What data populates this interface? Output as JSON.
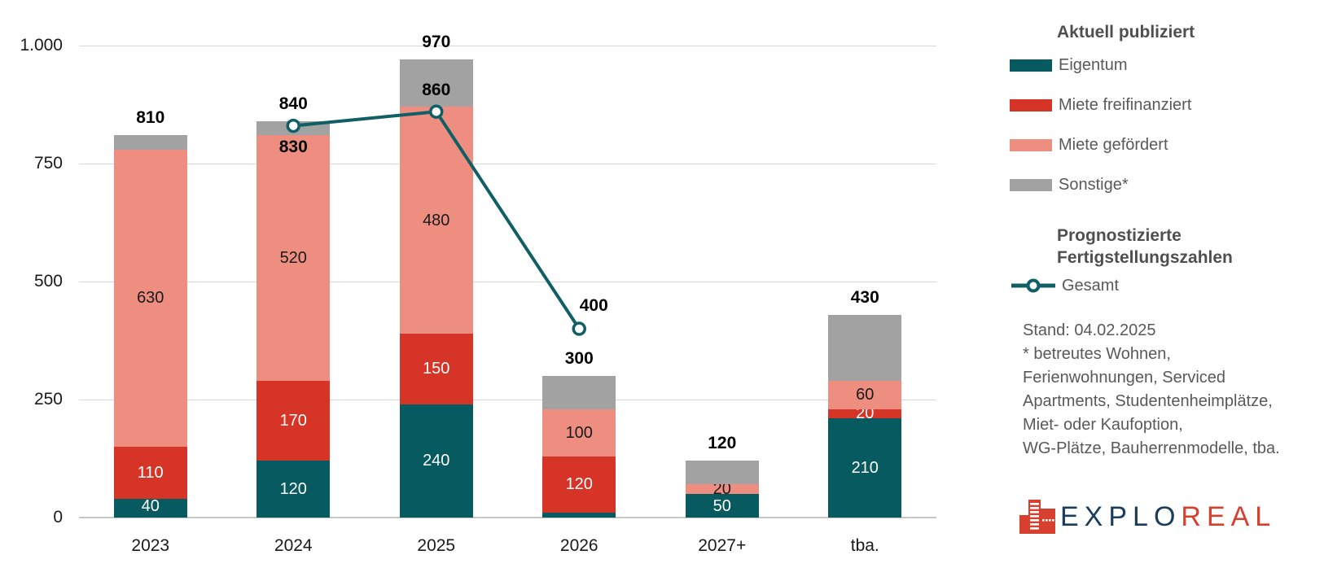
{
  "chart_data": {
    "type": "bar",
    "subtype": "stacked-bar-with-line",
    "title": "",
    "categories": [
      "2023",
      "2024",
      "2025",
      "2026",
      "2027+",
      "tba."
    ],
    "series": [
      {
        "name": "Eigentum",
        "color": "#075a5f",
        "label_color": "#ffffff",
        "labels": true,
        "values": [
          40,
          120,
          240,
          10,
          50,
          210
        ]
      },
      {
        "name": "Miete freifinanziert",
        "color": "#d63426",
        "label_color": "#ffffff",
        "labels": true,
        "values": [
          110,
          170,
          150,
          120,
          0,
          20
        ]
      },
      {
        "name": "Miete gefördert",
        "color": "#ed8e80",
        "label_color": "#1a1a1a",
        "labels": true,
        "values": [
          630,
          520,
          480,
          100,
          20,
          60
        ]
      },
      {
        "name": "Sonstige*",
        "color": "#a2a2a2",
        "label_color": "#1a1a1a",
        "labels": false,
        "values": [
          30,
          30,
          100,
          70,
          50,
          140
        ]
      }
    ],
    "totals": [
      810,
      840,
      970,
      300,
      120,
      430
    ],
    "line": {
      "name": "Gesamt",
      "color": "#105f66",
      "marker_fill": "#ffffff",
      "points": [
        {
          "category": "2024",
          "value": 830,
          "label": "830",
          "label_pos": "below"
        },
        {
          "category": "2025",
          "value": 860,
          "label": "860",
          "label_pos": "above"
        },
        {
          "category": "2026",
          "value": 400,
          "label": "400",
          "label_pos": "right"
        }
      ]
    },
    "y_ticks": [
      {
        "value": 0,
        "label": "0"
      },
      {
        "value": 250,
        "label": "250"
      },
      {
        "value": 500,
        "label": "500"
      },
      {
        "value": 750,
        "label": "750"
      },
      {
        "value": 1000,
        "label": "1.000"
      }
    ],
    "ylim": [
      0,
      1000
    ],
    "grid": true,
    "legend_position": "right",
    "xlabel": "",
    "ylabel": ""
  },
  "legend": {
    "published_title": "Aktuell publiziert",
    "items": [
      {
        "label": "Eigentum",
        "color": "#075a5f"
      },
      {
        "label": "Miete freifinanziert",
        "color": "#d63426"
      },
      {
        "label": "Miete gefördert",
        "color": "#ed8e80"
      },
      {
        "label": "Sonstige*",
        "color": "#a2a2a2"
      }
    ],
    "forecast_title": "Prognostizierte Fertigstellungszahlen",
    "forecast_item": {
      "label": "Gesamt",
      "color": "#105f66"
    }
  },
  "notes": {
    "stand": "Stand: 04.02.2025",
    "footnote_lines": [
      "* betreutes Wohnen,",
      "Ferienwohnungen, Serviced",
      "Apartments, Studentenheimplätze,",
      "Miet- oder Kaufoption,",
      "WG-Plätze, Bauherrenmodelle, tba."
    ]
  },
  "logo": {
    "text_primary": "EXPLO",
    "text_secondary": "REAL",
    "primary_color": "#1b3d5c",
    "secondary_color": "#d7402e",
    "icon_color": "#d7402e",
    "icon_name": "buildings-icon"
  }
}
